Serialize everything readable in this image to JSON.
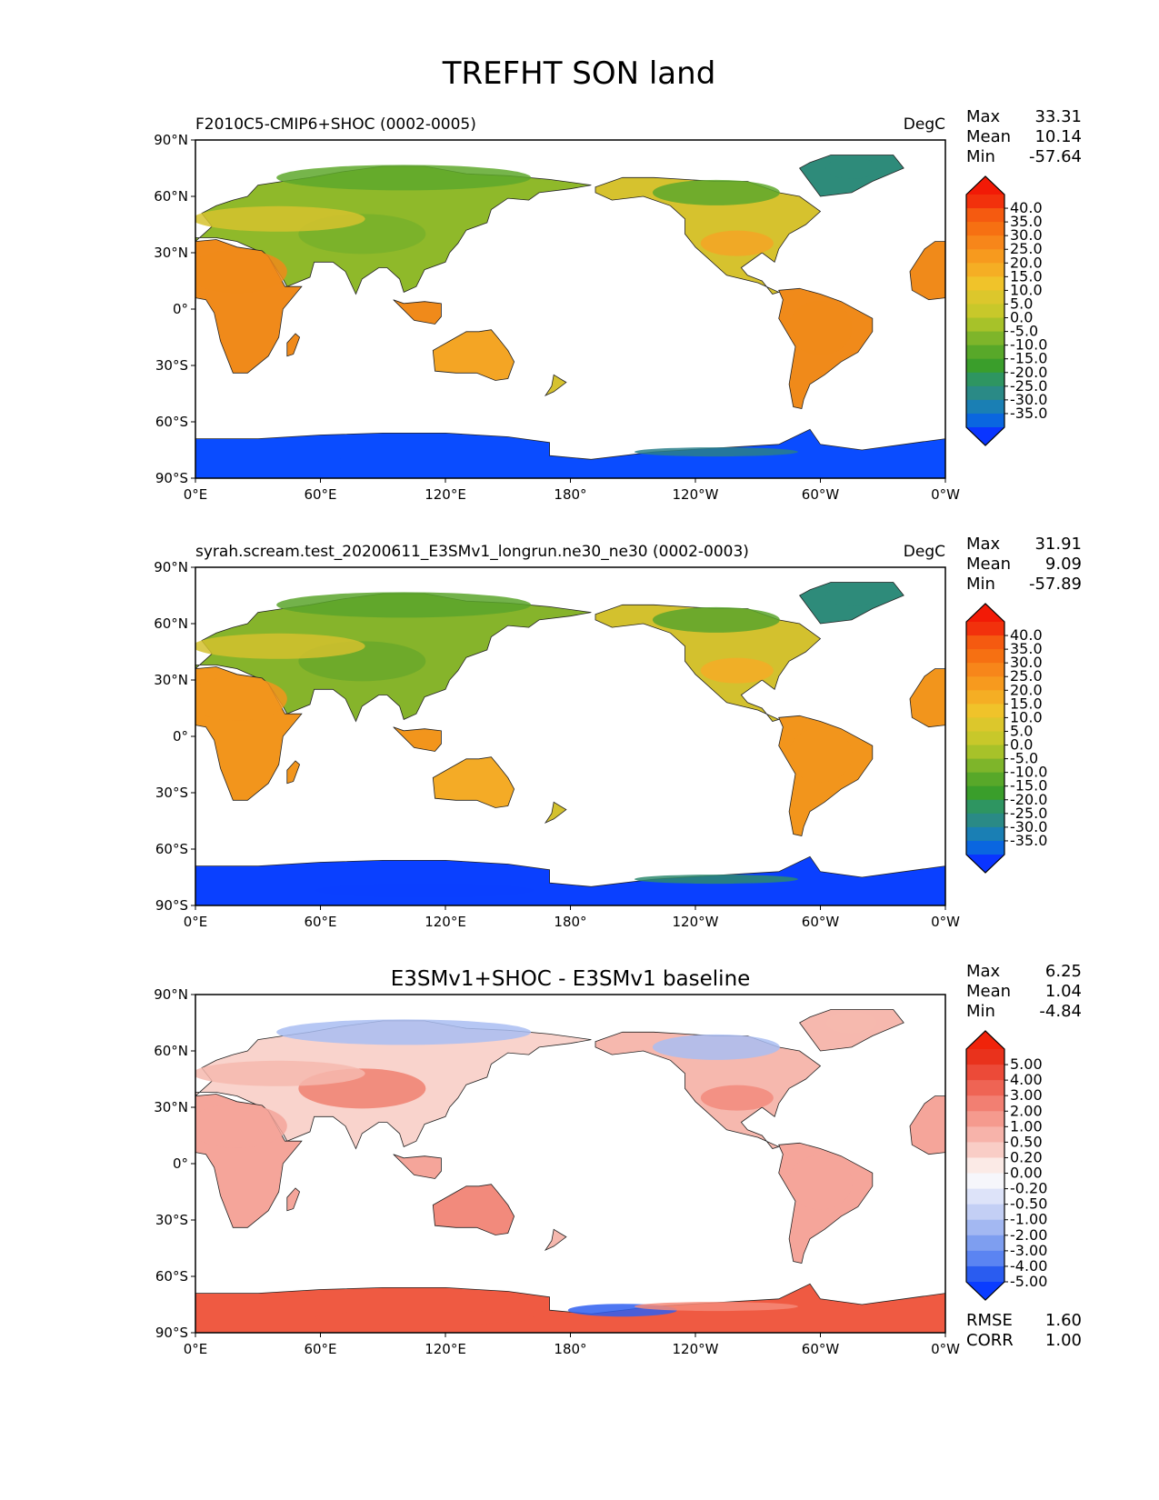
{
  "title": "TREFHT SON land",
  "panels": [
    {
      "id": "test",
      "left_title": "F2010C5-CMIP6+SHOC (0002-0005)",
      "center_title": "",
      "units": "DegC",
      "stats": [
        {
          "label": "Max",
          "value": "33.31"
        },
        {
          "label": "Mean",
          "value": "10.14"
        },
        {
          "label": "Min",
          "value": "-57.64"
        }
      ],
      "colorbar": {
        "colors": [
          "#0a35ff",
          "#0a66e0",
          "#1a7fb4",
          "#2a8a86",
          "#2e9561",
          "#3a9e2b",
          "#58a829",
          "#7eb52a",
          "#a7c229",
          "#c8c82a",
          "#dcc72c",
          "#f0c32a",
          "#f5ae24",
          "#f79a1e",
          "#f7861a",
          "#f67012",
          "#f55a10",
          "#f2310c",
          "#f21a06"
        ],
        "labels": [
          "40.0",
          "35.0",
          "30.0",
          "25.0",
          "20.0",
          "15.0",
          "10.0",
          "5.0",
          "0.0",
          "-5.0",
          "-10.0",
          "-15.0",
          "-20.0",
          "-25.0",
          "-30.0",
          "-35.0"
        ]
      },
      "extra_stats": [],
      "palette": {
        "ocean": "#ffffff",
        "coast": "#222222",
        "trop": "#f08a1a",
        "subtrop": "#f4a524",
        "mid": "#d6c22e",
        "boreal": "#8fb92a",
        "arctic": "#5ea82c",
        "greenland": "#2e8b7a",
        "antarctic": "#0a4cff",
        "antarctic_edge": "#2a7f8a",
        "plateau": "#78b02a"
      }
    },
    {
      "id": "ref",
      "left_title": "syrah.scream.test_20200611_E3SMv1_longrun.ne30_ne30 (0002-0003)",
      "center_title": "",
      "units": "DegC",
      "stats": [
        {
          "label": "Max",
          "value": "31.91"
        },
        {
          "label": "Mean",
          "value": "9.09"
        },
        {
          "label": "Min",
          "value": "-57.89"
        }
      ],
      "colorbar": {
        "colors": [
          "#0a35ff",
          "#0a66e0",
          "#1a7fb4",
          "#2a8a86",
          "#2e9561",
          "#3a9e2b",
          "#58a829",
          "#7eb52a",
          "#a7c229",
          "#c8c82a",
          "#dcc72c",
          "#f0c32a",
          "#f5ae24",
          "#f79a1e",
          "#f7861a",
          "#f67012",
          "#f55a10",
          "#f2310c",
          "#f21a06"
        ],
        "labels": [
          "40.0",
          "35.0",
          "30.0",
          "25.0",
          "20.0",
          "15.0",
          "10.0",
          "5.0",
          "0.0",
          "-5.0",
          "-10.0",
          "-15.0",
          "-20.0",
          "-25.0",
          "-30.0",
          "-35.0"
        ]
      },
      "extra_stats": [],
      "palette": {
        "ocean": "#ffffff",
        "coast": "#222222",
        "trop": "#f2951c",
        "subtrop": "#f4ab26",
        "mid": "#d3c12e",
        "boreal": "#86b42b",
        "arctic": "#5aa52c",
        "greenland": "#2e8b7a",
        "antarctic": "#0a40ff",
        "antarctic_edge": "#2e8a6e",
        "plateau": "#6aa82a"
      }
    },
    {
      "id": "diff",
      "left_title": "",
      "center_title": "E3SMv1+SHOC - E3SMv1 baseline",
      "units": "",
      "stats": [
        {
          "label": "Max",
          "value": "6.25"
        },
        {
          "label": "Mean",
          "value": "1.04"
        },
        {
          "label": "Min",
          "value": "-4.84"
        }
      ],
      "colorbar": {
        "colors": [
          "#0a3cff",
          "#2a5cf0",
          "#5b84f2",
          "#7e9ef0",
          "#a3b8f2",
          "#c3cff5",
          "#dde3f9",
          "#f6f6fb",
          "#fbeae6",
          "#f9cdc6",
          "#f7b3aa",
          "#f59a8e",
          "#f27f72",
          "#ef6454",
          "#ec4a38",
          "#e9321c",
          "#f0230a"
        ],
        "labels": [
          "5.00",
          "4.00",
          "3.00",
          "2.00",
          "1.00",
          "0.50",
          "0.20",
          "0.00",
          "-0.20",
          "-0.50",
          "-1.00",
          "-2.00",
          "-3.00",
          "-4.00",
          "-5.00"
        ]
      },
      "extra_stats": [
        {
          "label": "RMSE",
          "value": "1.60"
        },
        {
          "label": "CORR",
          "value": "1.00"
        }
      ],
      "palette": {
        "ocean": "#ffffff",
        "coast": "#222222",
        "trop": "#f5a59a",
        "subtrop": "#f28a7c",
        "mid": "#f6b8ae",
        "boreal": "#f9d3cc",
        "arctic": "#a9bdf2",
        "greenland": "#f6b8ae",
        "antarctic": "#ef5a42",
        "antarctic_edge": "#f58a78",
        "plateau": "#f08070",
        "cold_patch": "#2f5ff0"
      }
    }
  ],
  "axes": {
    "lat_labels": [
      "90°N",
      "60°N",
      "30°N",
      "0°",
      "30°S",
      "60°S",
      "90°S"
    ],
    "lon_labels": [
      "0°E",
      "60°E",
      "120°E",
      "180°",
      "120°W",
      "60°W",
      "0°W"
    ]
  }
}
